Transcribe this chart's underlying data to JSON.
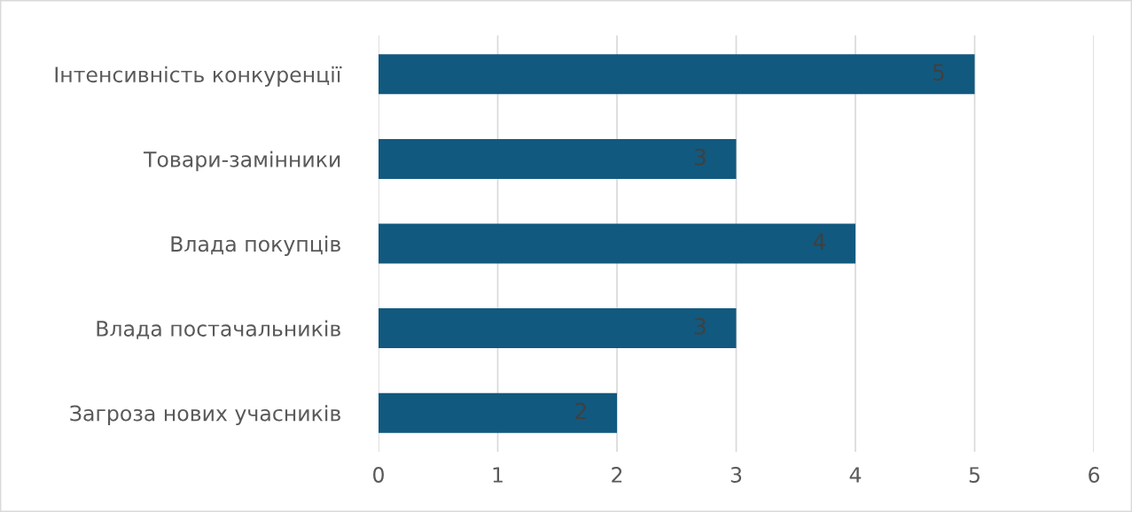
{
  "chart_data": {
    "type": "bar",
    "orientation": "horizontal",
    "categories": [
      "Інтенсивність конкуренції",
      "Товари-замінники",
      "Влада покупців",
      "Влада постачальників",
      "Загроза нових учасників"
    ],
    "values": [
      5,
      3,
      4,
      3,
      2
    ],
    "color": "#12597f",
    "xlim": [
      0,
      6
    ],
    "xticks": [
      0,
      1,
      2,
      3,
      4,
      5,
      6
    ],
    "grid": "x",
    "data_labels": true
  }
}
